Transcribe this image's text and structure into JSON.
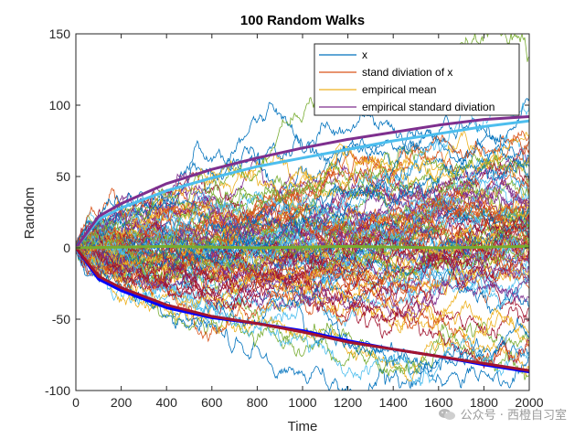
{
  "chart_data": {
    "type": "line",
    "title": "100 Random Walks",
    "xlabel": "Time",
    "ylabel": "Random",
    "xlim": [
      0,
      2000
    ],
    "ylim": [
      -100,
      150
    ],
    "xticks": [
      0,
      200,
      400,
      600,
      800,
      1000,
      1200,
      1400,
      1600,
      1800,
      2000
    ],
    "yticks": [
      -100,
      -50,
      0,
      50,
      100,
      150
    ],
    "num_walks": 100,
    "legend_position": "top-right",
    "legend": [
      "x",
      "stand diviation of x",
      "empirical mean",
      "empirical standard diviation"
    ],
    "series": [
      {
        "name": "x",
        "description": "100 random walk traces",
        "color": "#0072bd"
      },
      {
        "name": "stand diviation of x",
        "color": "#d95319"
      },
      {
        "name": "empirical mean",
        "color": "#edb120"
      },
      {
        "name": "empirical standard diviation",
        "color": "#7e2f8e"
      }
    ],
    "envelopes": [
      {
        "name": "theoretical std upper",
        "color": "#4dbeee",
        "x": [
          0,
          100,
          200,
          400,
          600,
          800,
          1000,
          1200,
          1400,
          1600,
          1800,
          2000
        ],
        "y": [
          0,
          20,
          28,
          40,
          49,
          57,
          63,
          69,
          75,
          80,
          85,
          89
        ]
      },
      {
        "name": "empirical std upper",
        "color": "#7e2f8e",
        "x": [
          0,
          100,
          200,
          400,
          600,
          800,
          1000,
          1200,
          1400,
          1600,
          1800,
          2000
        ],
        "y": [
          0,
          22,
          31,
          45,
          55,
          63,
          70,
          76,
          81,
          86,
          90,
          92
        ]
      },
      {
        "name": "theoretical std lower",
        "color": "#0000ff",
        "x": [
          0,
          100,
          200,
          400,
          600,
          800,
          1000,
          1200,
          1400,
          1600,
          1800,
          2000
        ],
        "y": [
          0,
          -22,
          -30,
          -42,
          -49,
          -53,
          -58,
          -65,
          -71,
          -76,
          -82,
          -87
        ]
      },
      {
        "name": "empirical std lower",
        "color": "#a2142f",
        "x": [
          0,
          100,
          200,
          400,
          600,
          800,
          1000,
          1200,
          1400,
          1600,
          1800,
          2000
        ],
        "y": [
          0,
          -20,
          -28,
          -40,
          -48,
          -53,
          -59,
          -66,
          -71,
          -76,
          -81,
          -86
        ]
      },
      {
        "name": "mean",
        "color": "#77ac30",
        "x": [
          0,
          400,
          800,
          1200,
          1600,
          2000
        ],
        "y": [
          0,
          1,
          0,
          1,
          0,
          1
        ]
      }
    ],
    "walk_colors": [
      "#0072bd",
      "#d95319",
      "#edb120",
      "#7e2f8e",
      "#77ac30",
      "#4dbeee",
      "#a2142f"
    ]
  },
  "watermark": "公众号 · 西橙自习室"
}
